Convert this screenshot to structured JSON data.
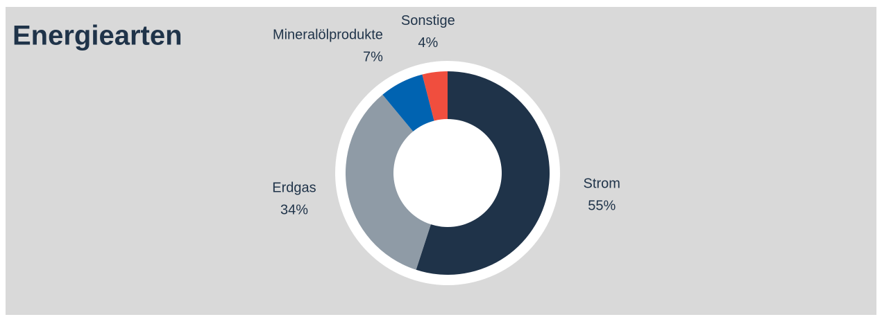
{
  "chart_data": {
    "type": "donut",
    "title": "Energiearten",
    "categories": [
      "Strom",
      "Erdgas",
      "Mineralölprodukte",
      "Sonstige"
    ],
    "values": [
      55,
      34,
      7,
      4
    ],
    "value_labels": [
      "55%",
      "34%",
      "7%",
      "4%"
    ],
    "colors": [
      "#1f3349",
      "#8f9ba6",
      "#0063b1",
      "#f04e3e"
    ]
  }
}
